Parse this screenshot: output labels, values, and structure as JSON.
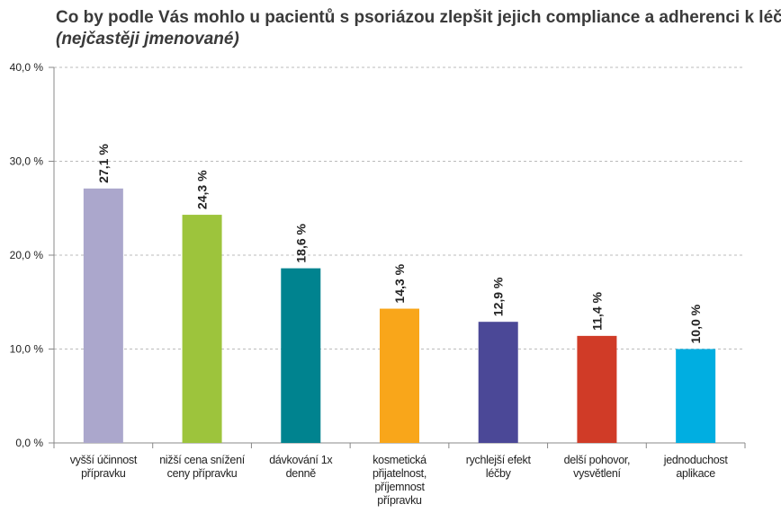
{
  "chart_data": {
    "type": "bar",
    "title": "Co by podle Vás mohlo u pacientů s psoriázou zlepšit jejich compliance a adherenci k léčbě?",
    "subtitle": "(nejčastěji jmenované)",
    "categories": [
      "vyšší účinnost přípravku",
      "nižší cena snížení ceny přípravku",
      "dávkování 1x denně",
      "kosmetická přijatelnost, příjemnost přípravku",
      "rychlejší efekt léčby",
      "delší pohovor, vysvětlení",
      "jednoduchost aplikace"
    ],
    "values": [
      27.1,
      24.3,
      18.6,
      14.3,
      12.9,
      11.4,
      10.0
    ],
    "value_labels": [
      "27,1 %",
      "24,3 %",
      "18,6 %",
      "14,3 %",
      "12,9 %",
      "11,4 %",
      "10,0 %"
    ],
    "colors": [
      "#aba7cc",
      "#9dc43c",
      "#00838f",
      "#f9a61a",
      "#4b4897",
      "#d03b27",
      "#00aee1"
    ],
    "ylim": [
      0,
      40
    ],
    "yticks": [
      {
        "value": 0,
        "label": "0,0 %"
      },
      {
        "value": 10,
        "label": "10,0 %"
      },
      {
        "value": 20,
        "label": "20,0 %"
      },
      {
        "value": 30,
        "label": "30,0 %"
      },
      {
        "value": 40,
        "label": "40,0 %"
      }
    ],
    "grid": true
  }
}
